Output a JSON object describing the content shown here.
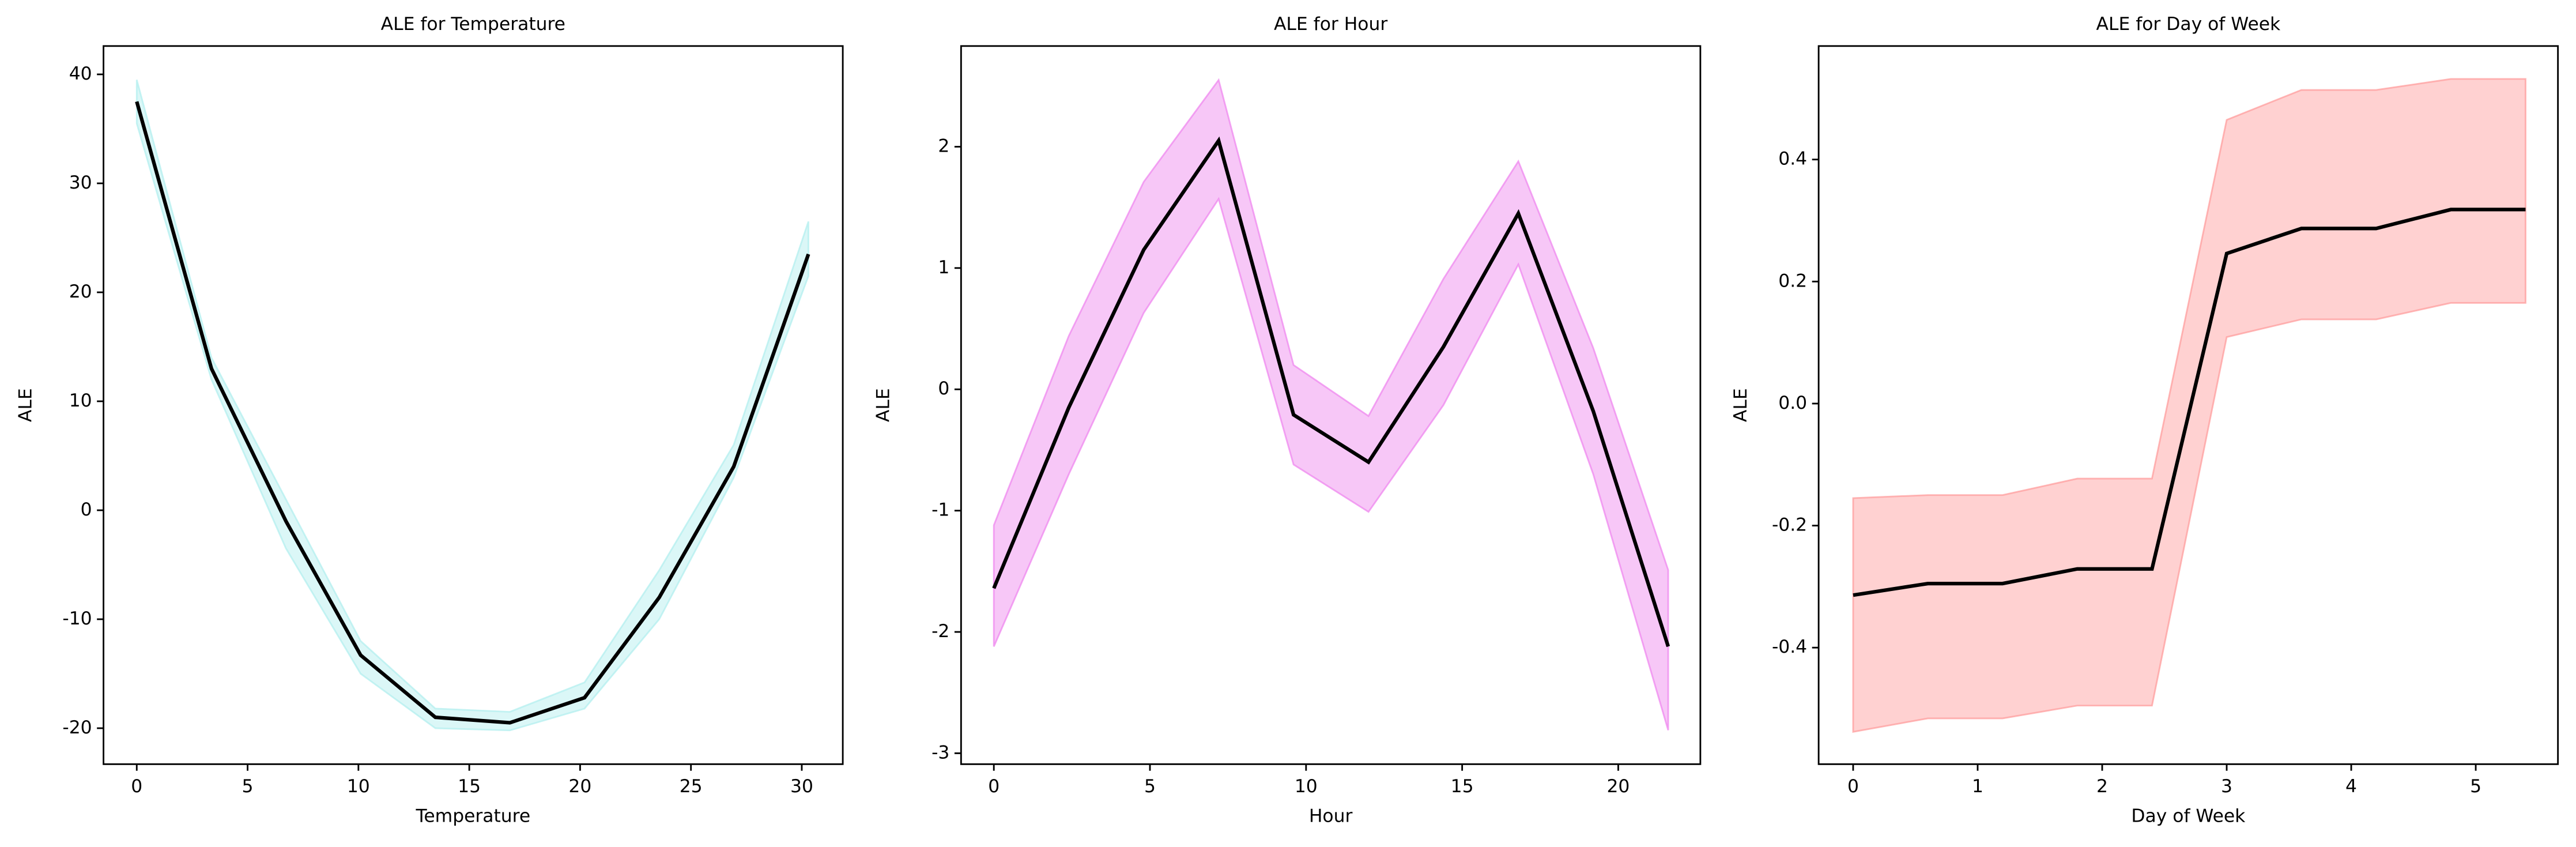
{
  "chart_data": [
    {
      "type": "line",
      "title": "ALE for Temperature",
      "xlabel": "Temperature",
      "ylabel": "ALE",
      "x": [
        0,
        3.37,
        6.73,
        10.1,
        13.47,
        16.83,
        20.2,
        23.57,
        26.93,
        30.3
      ],
      "series": [
        {
          "color": "#000000",
          "band_color": "#afeeee",
          "values": [
            37.5,
            13,
            -1,
            -13.3,
            -19,
            -19.5,
            -17.2,
            -8,
            4,
            23.5
          ],
          "upper": [
            39.5,
            14,
            1,
            -12,
            -18.2,
            -18.5,
            -15.8,
            -5.5,
            6,
            26.5
          ],
          "lower": [
            35.5,
            12,
            -3.5,
            -15,
            -20,
            -20.2,
            -18.2,
            -10,
            3,
            21.5
          ]
        }
      ],
      "xlim": [
        -1.5,
        31.85
      ],
      "xticks": [
        0,
        5,
        10,
        15,
        20,
        25,
        30
      ],
      "ylim": [
        -23.3,
        42.6
      ],
      "yticks": [
        -20,
        -10,
        0,
        10,
        20,
        30,
        40
      ]
    },
    {
      "type": "line",
      "title": "ALE for Hour",
      "xlabel": "Hour",
      "ylabel": "ALE",
      "x": [
        0,
        2.4,
        4.8,
        7.2,
        9.6,
        12,
        14.4,
        16.8,
        19.2,
        21.6
      ],
      "series": [
        {
          "color": "#000000",
          "band_color": "#ee82ee",
          "values": [
            -1.64,
            -0.15,
            1.15,
            2.05,
            -0.21,
            -0.6,
            0.35,
            1.45,
            -0.18,
            -2.12
          ],
          "upper": [
            -1.12,
            0.44,
            1.71,
            2.55,
            0.2,
            -0.22,
            0.91,
            1.88,
            0.34,
            -1.49
          ],
          "lower": [
            -2.12,
            -0.7,
            0.63,
            1.57,
            -0.62,
            -1.01,
            -0.13,
            1.03,
            -0.7,
            -2.81
          ]
        }
      ],
      "xlim": [
        -1.05,
        22.63
      ],
      "xticks": [
        0,
        5,
        10,
        15,
        20
      ],
      "ylim": [
        -3.09,
        2.83
      ],
      "yticks": [
        -3,
        -2,
        -1,
        0,
        1,
        2
      ]
    },
    {
      "type": "line",
      "title": "ALE for Day of Week",
      "xlabel": "Day of Week",
      "ylabel": "ALE",
      "x": [
        0,
        0.6,
        1.2,
        1.8,
        2.4,
        3.0,
        3.6,
        4.2,
        4.8,
        5.4
      ],
      "series": [
        {
          "color": "#000000",
          "band_color": "#ff9999",
          "values": [
            -0.314,
            -0.295,
            -0.295,
            -0.271,
            -0.271,
            0.246,
            0.287,
            0.287,
            0.318,
            0.318
          ],
          "upper": [
            -0.155,
            -0.15,
            -0.15,
            -0.123,
            -0.123,
            0.465,
            0.514,
            0.514,
            0.532,
            0.532
          ],
          "lower": [
            -0.538,
            -0.516,
            -0.516,
            -0.495,
            -0.495,
            0.109,
            0.138,
            0.138,
            0.165,
            0.165
          ]
        }
      ],
      "xlim": [
        -0.277,
        5.66
      ],
      "xticks": [
        0,
        1,
        2,
        3,
        4,
        5
      ],
      "ylim": [
        -0.591,
        0.586
      ],
      "yticks": [
        -0.4,
        -0.2,
        {
          "value": 0,
          "label": "0.0"
        },
        0.2,
        0.4
      ]
    }
  ]
}
